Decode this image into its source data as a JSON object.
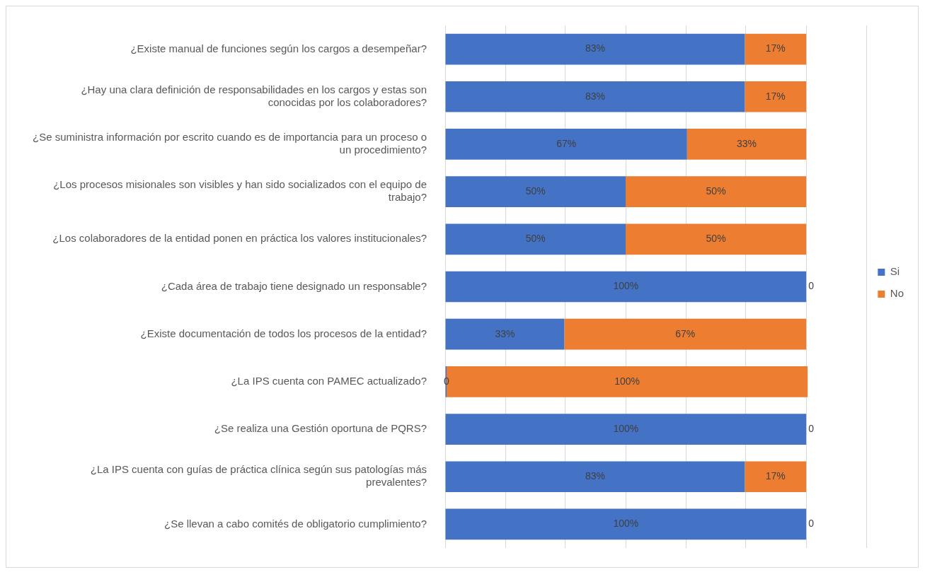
{
  "chart_data": {
    "type": "bar",
    "orientation": "horizontal",
    "stacked": true,
    "categories": [
      "¿Existe manual de funciones según los cargos a desempeñar?",
      "¿Hay una clara definición de responsabilidades en los cargos y estas son conocidas por los colaboradores?",
      "¿Se suministra información por escrito cuando es de importancia para un proceso o un procedimiento?",
      "¿Los procesos misionales son visibles y han sido socializados con el equipo de trabajo?",
      "¿Los colaboradores de la entidad ponen en práctica los valores institucionales?",
      "¿Cada área de trabajo tiene designado un responsable?",
      "¿Existe documentación de todos los procesos de la entidad?",
      "¿La IPS cuenta con PAMEC actualizado?",
      "¿Se realiza una Gestión oportuna de PQRS?",
      "¿La IPS cuenta con guías de práctica clínica según sus patologías más prevalentes?",
      "¿Se llevan a cabo comités de obligatorio cumplimiento?"
    ],
    "series": [
      {
        "name": "Si",
        "color": "#4472c4",
        "values": [
          83,
          83,
          67,
          50,
          50,
          100,
          33,
          0,
          100,
          83,
          100
        ],
        "value_labels": [
          "83%",
          "83%",
          "67%",
          "50%",
          "50%",
          "100%",
          "33%",
          "0",
          "100%",
          "83%",
          "100%"
        ]
      },
      {
        "name": "No",
        "color": "#ed7d31",
        "values": [
          17,
          17,
          33,
          50,
          50,
          0,
          67,
          100,
          0,
          17,
          0
        ],
        "value_labels": [
          "17%",
          "17%",
          "33%",
          "50%",
          "50%",
          "0",
          "67%",
          "100%",
          "0",
          "17%",
          "0"
        ]
      }
    ],
    "xlim": [
      0,
      116.7
    ],
    "xticks": [
      {
        "value": 0,
        "label": null
      },
      {
        "value": 16.7,
        "label": null
      },
      {
        "value": 33.3,
        "label": null
      },
      {
        "value": 50,
        "label": null
      },
      {
        "value": 66.7,
        "label": null
      },
      {
        "value": 83.3,
        "label": null
      },
      {
        "value": 100,
        "label": null
      },
      {
        "value": 116.7,
        "label": null
      }
    ],
    "grid": "x",
    "legend": "right",
    "tick_labels": "y"
  }
}
